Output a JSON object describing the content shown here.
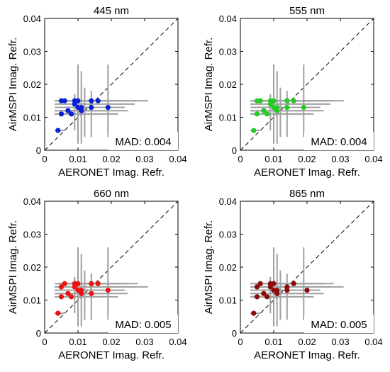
{
  "chart_data": [
    {
      "type": "scatter",
      "title": "445 nm",
      "xlabel": "AERONET Imag. Refr.",
      "ylabel": "AirMSPI Imag. Refr.",
      "xlim": [
        0,
        0.04
      ],
      "ylim": [
        0,
        0.04
      ],
      "xticks": [
        "0",
        "0.01",
        "0.02",
        "0.03",
        "0.04"
      ],
      "yticks": [
        "0",
        "0.01",
        "0.02",
        "0.03",
        "0.04"
      ],
      "annotation": "MAD: 0.004",
      "marker_color": "#0a1fd8",
      "errorbar_color": "#a0a0a0",
      "points": [
        {
          "x": 0.004,
          "y": 0.006,
          "xerr": [
            0.003,
            0.006
          ],
          "yerr": [
            0.006,
            0.006
          ]
        },
        {
          "x": 0.005,
          "y": 0.011,
          "xerr": [
            0.003,
            0.018
          ],
          "yerr": [
            0.011,
            0.011
          ]
        },
        {
          "x": 0.005,
          "y": 0.015,
          "xerr": [
            0.003,
            0.031
          ],
          "yerr": [
            0.015,
            0.015
          ]
        },
        {
          "x": 0.006,
          "y": 0.015,
          "xerr": [
            0.003,
            0.028
          ],
          "yerr": [
            0.015,
            0.015
          ]
        },
        {
          "x": 0.007,
          "y": 0.012,
          "xerr": [
            0.003,
            0.025
          ],
          "yerr": [
            0.012,
            0.012
          ]
        },
        {
          "x": 0.008,
          "y": 0.011,
          "xerr": [
            0.003,
            0.022
          ],
          "yerr": [
            0.011,
            0.011
          ]
        },
        {
          "x": 0.009,
          "y": 0.014,
          "xerr": [
            0.003,
            0.027
          ],
          "yerr": [
            0.014,
            0.014
          ]
        },
        {
          "x": 0.009,
          "y": 0.015,
          "xerr": [
            0.004,
            0.025
          ],
          "yerr": [
            0.015,
            0.015
          ]
        },
        {
          "x": 0.01,
          "y": 0.013,
          "xerr": [
            0.003,
            0.023
          ],
          "yerr": [
            0.013,
            0.013
          ]
        },
        {
          "x": 0.01,
          "y": 0.015,
          "xerr": [
            0.004,
            0.02
          ],
          "yerr": [
            0.015,
            0.015
          ]
        },
        {
          "x": 0.011,
          "y": 0.012,
          "xerr": [
            0.003,
            0.019
          ],
          "yerr": [
            0.012,
            0.012
          ]
        },
        {
          "x": 0.011,
          "y": 0.013,
          "xerr": [
            0.004,
            0.017
          ],
          "yerr": [
            0.013,
            0.013
          ]
        },
        {
          "x": 0.014,
          "y": 0.013,
          "xerr": [
            0.004,
            0.016
          ],
          "yerr": [
            0.013,
            0.013
          ]
        },
        {
          "x": 0.014,
          "y": 0.015,
          "xerr": [
            0.004,
            0.018
          ],
          "yerr": [
            0.015,
            0.015
          ]
        },
        {
          "x": 0.016,
          "y": 0.015,
          "xerr": [
            0.004,
            0.022
          ],
          "yerr": [
            0.015,
            0.015
          ]
        },
        {
          "x": 0.019,
          "y": 0.013,
          "xerr": [
            0.005,
            0.024
          ],
          "yerr": [
            0.013,
            0.013
          ]
        }
      ],
      "vertical_bars": [
        {
          "x": 0.01,
          "y": [
            0.002,
            0.026
          ]
        },
        {
          "x": 0.011,
          "y": [
            0.002,
            0.024
          ]
        },
        {
          "x": 0.012,
          "y": [
            0.004,
            0.019
          ]
        },
        {
          "x": 0.014,
          "y": [
            0.004,
            0.018
          ]
        },
        {
          "x": 0.019,
          "y": [
            0.004,
            0.026
          ]
        },
        {
          "x": 0.009,
          "y": [
            0.006,
            0.017
          ]
        }
      ]
    },
    {
      "type": "scatter",
      "title": "555 nm",
      "xlabel": "AERONET Imag. Refr.",
      "ylabel": "AirMSPI Imag. Refr.",
      "xlim": [
        0,
        0.04
      ],
      "ylim": [
        0,
        0.04
      ],
      "xticks": [
        "0",
        "0.01",
        "0.02",
        "0.03",
        "0.04"
      ],
      "yticks": [
        "0",
        "0.01",
        "0.02",
        "0.03",
        "0.04"
      ],
      "annotation": "MAD: 0.004",
      "marker_color": "#22cc22",
      "errorbar_color": "#a0a0a0",
      "points": [
        {
          "x": 0.004,
          "y": 0.006,
          "xerr": [
            0.003,
            0.006
          ],
          "yerr": [
            0.006,
            0.006
          ]
        },
        {
          "x": 0.005,
          "y": 0.011,
          "xerr": [
            0.003,
            0.018
          ],
          "yerr": [
            0.011,
            0.011
          ]
        },
        {
          "x": 0.005,
          "y": 0.015,
          "xerr": [
            0.003,
            0.031
          ],
          "yerr": [
            0.015,
            0.015
          ]
        },
        {
          "x": 0.006,
          "y": 0.015,
          "xerr": [
            0.003,
            0.028
          ],
          "yerr": [
            0.015,
            0.015
          ]
        },
        {
          "x": 0.007,
          "y": 0.012,
          "xerr": [
            0.003,
            0.025
          ],
          "yerr": [
            0.012,
            0.012
          ]
        },
        {
          "x": 0.008,
          "y": 0.011,
          "xerr": [
            0.003,
            0.022
          ],
          "yerr": [
            0.011,
            0.011
          ]
        },
        {
          "x": 0.009,
          "y": 0.014,
          "xerr": [
            0.003,
            0.027
          ],
          "yerr": [
            0.014,
            0.014
          ]
        },
        {
          "x": 0.009,
          "y": 0.015,
          "xerr": [
            0.004,
            0.025
          ],
          "yerr": [
            0.015,
            0.015
          ]
        },
        {
          "x": 0.01,
          "y": 0.013,
          "xerr": [
            0.003,
            0.023
          ],
          "yerr": [
            0.013,
            0.013
          ]
        },
        {
          "x": 0.01,
          "y": 0.015,
          "xerr": [
            0.004,
            0.02
          ],
          "yerr": [
            0.015,
            0.015
          ]
        },
        {
          "x": 0.011,
          "y": 0.012,
          "xerr": [
            0.003,
            0.019
          ],
          "yerr": [
            0.012,
            0.012
          ]
        },
        {
          "x": 0.011,
          "y": 0.013,
          "xerr": [
            0.004,
            0.017
          ],
          "yerr": [
            0.013,
            0.013
          ]
        },
        {
          "x": 0.014,
          "y": 0.013,
          "xerr": [
            0.004,
            0.016
          ],
          "yerr": [
            0.013,
            0.013
          ]
        },
        {
          "x": 0.014,
          "y": 0.015,
          "xerr": [
            0.004,
            0.018
          ],
          "yerr": [
            0.015,
            0.015
          ]
        },
        {
          "x": 0.016,
          "y": 0.015,
          "xerr": [
            0.004,
            0.022
          ],
          "yerr": [
            0.015,
            0.015
          ]
        },
        {
          "x": 0.019,
          "y": 0.013,
          "xerr": [
            0.005,
            0.024
          ],
          "yerr": [
            0.013,
            0.013
          ]
        }
      ],
      "vertical_bars": [
        {
          "x": 0.01,
          "y": [
            0.002,
            0.026
          ]
        },
        {
          "x": 0.011,
          "y": [
            0.002,
            0.024
          ]
        },
        {
          "x": 0.012,
          "y": [
            0.004,
            0.019
          ]
        },
        {
          "x": 0.014,
          "y": [
            0.004,
            0.018
          ]
        },
        {
          "x": 0.019,
          "y": [
            0.004,
            0.026
          ]
        },
        {
          "x": 0.009,
          "y": [
            0.006,
            0.017
          ]
        }
      ]
    },
    {
      "type": "scatter",
      "title": "660 nm",
      "xlabel": "AERONET Imag. Refr.",
      "ylabel": "AirMSPI Imag. Refr.",
      "xlim": [
        0,
        0.04
      ],
      "ylim": [
        0,
        0.04
      ],
      "xticks": [
        "0",
        "0.01",
        "0.02",
        "0.03",
        "0.04"
      ],
      "yticks": [
        "0",
        "0.01",
        "0.02",
        "0.03",
        "0.04"
      ],
      "annotation": "MAD: 0.005",
      "marker_color": "#ee1111",
      "errorbar_color": "#a0a0a0",
      "points": [
        {
          "x": 0.004,
          "y": 0.006,
          "xerr": [
            0.003,
            0.006
          ],
          "yerr": [
            0.006,
            0.006
          ]
        },
        {
          "x": 0.005,
          "y": 0.011,
          "xerr": [
            0.003,
            0.018
          ],
          "yerr": [
            0.011,
            0.011
          ]
        },
        {
          "x": 0.005,
          "y": 0.014,
          "xerr": [
            0.003,
            0.031
          ],
          "yerr": [
            0.014,
            0.014
          ]
        },
        {
          "x": 0.006,
          "y": 0.015,
          "xerr": [
            0.003,
            0.028
          ],
          "yerr": [
            0.015,
            0.015
          ]
        },
        {
          "x": 0.007,
          "y": 0.012,
          "xerr": [
            0.003,
            0.025
          ],
          "yerr": [
            0.012,
            0.012
          ]
        },
        {
          "x": 0.008,
          "y": 0.011,
          "xerr": [
            0.003,
            0.022
          ],
          "yerr": [
            0.011,
            0.011
          ]
        },
        {
          "x": 0.009,
          "y": 0.014,
          "xerr": [
            0.003,
            0.027
          ],
          "yerr": [
            0.014,
            0.014
          ]
        },
        {
          "x": 0.009,
          "y": 0.015,
          "xerr": [
            0.004,
            0.025
          ],
          "yerr": [
            0.015,
            0.015
          ]
        },
        {
          "x": 0.01,
          "y": 0.013,
          "xerr": [
            0.003,
            0.023
          ],
          "yerr": [
            0.013,
            0.013
          ]
        },
        {
          "x": 0.01,
          "y": 0.015,
          "xerr": [
            0.004,
            0.02
          ],
          "yerr": [
            0.015,
            0.015
          ]
        },
        {
          "x": 0.011,
          "y": 0.012,
          "xerr": [
            0.003,
            0.019
          ],
          "yerr": [
            0.012,
            0.012
          ]
        },
        {
          "x": 0.011,
          "y": 0.013,
          "xerr": [
            0.004,
            0.017
          ],
          "yerr": [
            0.013,
            0.013
          ]
        },
        {
          "x": 0.014,
          "y": 0.012,
          "xerr": [
            0.004,
            0.016
          ],
          "yerr": [
            0.012,
            0.012
          ]
        },
        {
          "x": 0.014,
          "y": 0.015,
          "xerr": [
            0.004,
            0.018
          ],
          "yerr": [
            0.015,
            0.015
          ]
        },
        {
          "x": 0.016,
          "y": 0.015,
          "xerr": [
            0.004,
            0.022
          ],
          "yerr": [
            0.015,
            0.015
          ]
        },
        {
          "x": 0.019,
          "y": 0.013,
          "xerr": [
            0.005,
            0.024
          ],
          "yerr": [
            0.013,
            0.013
          ]
        }
      ],
      "vertical_bars": [
        {
          "x": 0.01,
          "y": [
            0.002,
            0.026
          ]
        },
        {
          "x": 0.011,
          "y": [
            0.002,
            0.024
          ]
        },
        {
          "x": 0.012,
          "y": [
            0.004,
            0.019
          ]
        },
        {
          "x": 0.014,
          "y": [
            0.004,
            0.018
          ]
        },
        {
          "x": 0.019,
          "y": [
            0.004,
            0.026
          ]
        },
        {
          "x": 0.009,
          "y": [
            0.006,
            0.017
          ]
        }
      ]
    },
    {
      "type": "scatter",
      "title": "865 nm",
      "xlabel": "AERONET Imag. Refr.",
      "ylabel": "AirMSPI Imag. Refr.",
      "xlim": [
        0,
        0.04
      ],
      "ylim": [
        0,
        0.04
      ],
      "xticks": [
        "0",
        "0.01",
        "0.02",
        "0.03",
        "0.04"
      ],
      "yticks": [
        "0",
        "0.01",
        "0.02",
        "0.03",
        "0.04"
      ],
      "annotation": "MAD: 0.005",
      "marker_color": "#8b0a0a",
      "errorbar_color": "#a0a0a0",
      "points": [
        {
          "x": 0.004,
          "y": 0.006,
          "xerr": [
            0.003,
            0.006
          ],
          "yerr": [
            0.006,
            0.006
          ]
        },
        {
          "x": 0.005,
          "y": 0.011,
          "xerr": [
            0.003,
            0.018
          ],
          "yerr": [
            0.011,
            0.011
          ]
        },
        {
          "x": 0.005,
          "y": 0.014,
          "xerr": [
            0.003,
            0.031
          ],
          "yerr": [
            0.014,
            0.014
          ]
        },
        {
          "x": 0.006,
          "y": 0.015,
          "xerr": [
            0.003,
            0.028
          ],
          "yerr": [
            0.015,
            0.015
          ]
        },
        {
          "x": 0.007,
          "y": 0.012,
          "xerr": [
            0.003,
            0.025
          ],
          "yerr": [
            0.012,
            0.012
          ]
        },
        {
          "x": 0.008,
          "y": 0.011,
          "xerr": [
            0.003,
            0.022
          ],
          "yerr": [
            0.011,
            0.011
          ]
        },
        {
          "x": 0.009,
          "y": 0.014,
          "xerr": [
            0.003,
            0.027
          ],
          "yerr": [
            0.014,
            0.014
          ]
        },
        {
          "x": 0.009,
          "y": 0.015,
          "xerr": [
            0.004,
            0.025
          ],
          "yerr": [
            0.015,
            0.015
          ]
        },
        {
          "x": 0.01,
          "y": 0.013,
          "xerr": [
            0.003,
            0.023
          ],
          "yerr": [
            0.013,
            0.013
          ]
        },
        {
          "x": 0.01,
          "y": 0.015,
          "xerr": [
            0.004,
            0.02
          ],
          "yerr": [
            0.015,
            0.015
          ]
        },
        {
          "x": 0.011,
          "y": 0.012,
          "xerr": [
            0.003,
            0.019
          ],
          "yerr": [
            0.012,
            0.012
          ]
        },
        {
          "x": 0.011,
          "y": 0.013,
          "xerr": [
            0.004,
            0.017
          ],
          "yerr": [
            0.013,
            0.013
          ]
        },
        {
          "x": 0.014,
          "y": 0.013,
          "xerr": [
            0.004,
            0.016
          ],
          "yerr": [
            0.013,
            0.013
          ]
        },
        {
          "x": 0.014,
          "y": 0.014,
          "xerr": [
            0.004,
            0.018
          ],
          "yerr": [
            0.014,
            0.014
          ]
        },
        {
          "x": 0.016,
          "y": 0.015,
          "xerr": [
            0.004,
            0.022
          ],
          "yerr": [
            0.015,
            0.015
          ]
        },
        {
          "x": 0.02,
          "y": 0.013,
          "xerr": [
            0.005,
            0.024
          ],
          "yerr": [
            0.013,
            0.013
          ]
        }
      ],
      "vertical_bars": [
        {
          "x": 0.01,
          "y": [
            0.002,
            0.026
          ]
        },
        {
          "x": 0.011,
          "y": [
            0.002,
            0.024
          ]
        },
        {
          "x": 0.012,
          "y": [
            0.004,
            0.019
          ]
        },
        {
          "x": 0.014,
          "y": [
            0.004,
            0.018
          ]
        },
        {
          "x": 0.019,
          "y": [
            0.004,
            0.026
          ]
        },
        {
          "x": 0.009,
          "y": [
            0.006,
            0.017
          ]
        }
      ]
    }
  ]
}
